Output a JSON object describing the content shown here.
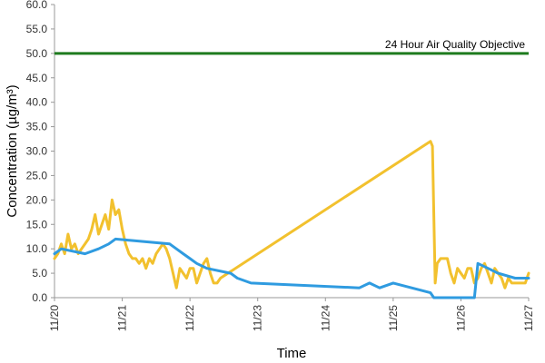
{
  "chart_data": {
    "type": "line",
    "xlabel": "Time",
    "ylabel": "Concentration (µg/m³)",
    "ylim": [
      0,
      60
    ],
    "y_ticks": [
      "0.0",
      "5.0",
      "10.0",
      "15.0",
      "20.0",
      "25.0",
      "30.0",
      "35.0",
      "40.0",
      "45.0",
      "50.0",
      "55.0",
      "60.0"
    ],
    "x_ticks": [
      "11/20",
      "11/21",
      "11/22",
      "11/23",
      "11/24",
      "11/25",
      "11/26",
      "11/27"
    ],
    "grid": false,
    "objective": {
      "label": "24 Hour Air Quality Objective",
      "value": 50,
      "color": "#1e7b1e"
    },
    "series": [
      {
        "color": "#f2c12e",
        "points": [
          [
            0.0,
            8
          ],
          [
            0.05,
            9
          ],
          [
            0.1,
            11
          ],
          [
            0.15,
            9
          ],
          [
            0.2,
            13
          ],
          [
            0.25,
            10
          ],
          [
            0.3,
            11
          ],
          [
            0.35,
            9
          ],
          [
            0.4,
            10
          ],
          [
            0.45,
            11
          ],
          [
            0.5,
            12
          ],
          [
            0.55,
            14
          ],
          [
            0.6,
            17
          ],
          [
            0.65,
            13
          ],
          [
            0.7,
            15
          ],
          [
            0.75,
            17
          ],
          [
            0.8,
            14
          ],
          [
            0.85,
            20
          ],
          [
            0.9,
            17
          ],
          [
            0.95,
            18
          ],
          [
            1.0,
            14
          ],
          [
            1.05,
            11
          ],
          [
            1.1,
            9
          ],
          [
            1.15,
            8
          ],
          [
            1.2,
            8
          ],
          [
            1.25,
            7
          ],
          [
            1.3,
            8
          ],
          [
            1.35,
            6
          ],
          [
            1.4,
            8
          ],
          [
            1.45,
            7
          ],
          [
            1.5,
            9
          ],
          [
            1.55,
            10
          ],
          [
            1.6,
            11
          ],
          [
            1.65,
            10
          ],
          [
            1.7,
            8
          ],
          [
            1.75,
            5
          ],
          [
            1.8,
            2
          ],
          [
            1.85,
            6
          ],
          [
            1.9,
            5
          ],
          [
            1.95,
            4
          ],
          [
            2.0,
            6
          ],
          [
            2.05,
            6
          ],
          [
            2.1,
            3
          ],
          [
            2.15,
            5
          ],
          [
            2.2,
            7
          ],
          [
            2.25,
            8
          ],
          [
            2.3,
            5
          ],
          [
            2.35,
            3
          ],
          [
            2.4,
            3
          ],
          [
            2.45,
            4
          ],
          [
            5.55,
            32
          ],
          [
            5.58,
            31
          ],
          [
            5.62,
            3
          ],
          [
            5.65,
            7
          ],
          [
            5.7,
            8
          ],
          [
            5.8,
            8
          ],
          [
            5.85,
            5
          ],
          [
            5.9,
            3
          ],
          [
            5.95,
            6
          ],
          [
            6.0,
            5
          ],
          [
            6.05,
            4
          ],
          [
            6.1,
            6
          ],
          [
            6.15,
            6
          ],
          [
            6.2,
            3
          ],
          [
            6.25,
            4
          ],
          [
            6.3,
            6
          ],
          [
            6.35,
            7
          ],
          [
            6.4,
            5
          ],
          [
            6.45,
            3
          ],
          [
            6.5,
            6
          ],
          [
            6.55,
            5
          ],
          [
            6.6,
            4
          ],
          [
            6.65,
            2
          ],
          [
            6.7,
            4
          ],
          [
            6.75,
            3
          ],
          [
            6.8,
            3
          ],
          [
            6.85,
            3
          ],
          [
            6.9,
            3
          ],
          [
            6.95,
            3
          ],
          [
            7.0,
            5
          ]
        ]
      },
      {
        "color": "#2f9be0",
        "points": [
          [
            0.0,
            9
          ],
          [
            0.1,
            10
          ],
          [
            0.45,
            9
          ],
          [
            0.65,
            10
          ],
          [
            0.8,
            11
          ],
          [
            0.9,
            12
          ],
          [
            1.7,
            11
          ],
          [
            1.8,
            10
          ],
          [
            1.9,
            9
          ],
          [
            2.0,
            8
          ],
          [
            2.1,
            7
          ],
          [
            2.25,
            6
          ],
          [
            2.6,
            5
          ],
          [
            2.7,
            4
          ],
          [
            2.9,
            3
          ],
          [
            4.5,
            2
          ],
          [
            4.65,
            3
          ],
          [
            4.8,
            2
          ],
          [
            5.0,
            3
          ],
          [
            5.55,
            1
          ],
          [
            5.6,
            0
          ],
          [
            6.2,
            0
          ],
          [
            6.25,
            7
          ],
          [
            6.4,
            6
          ],
          [
            6.55,
            5
          ],
          [
            6.8,
            4
          ],
          [
            7.0,
            4
          ]
        ]
      }
    ]
  }
}
